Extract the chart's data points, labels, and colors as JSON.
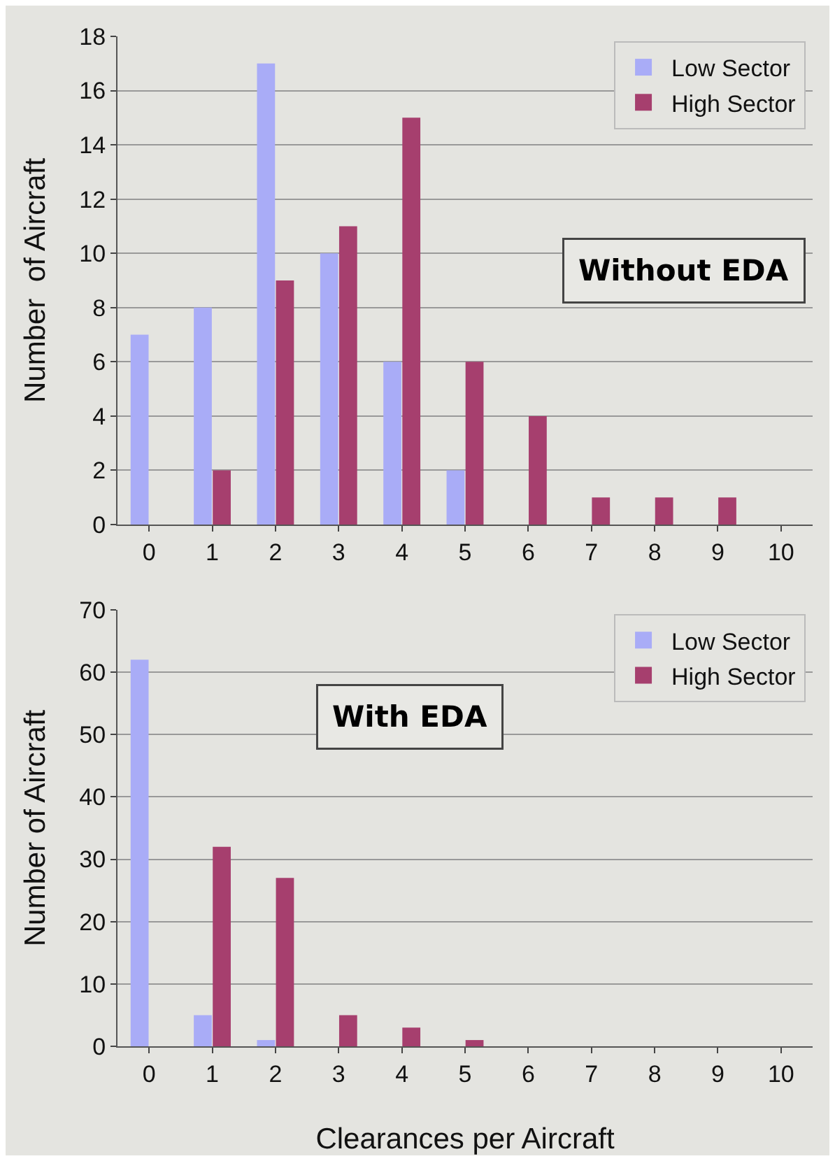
{
  "chart_data": [
    {
      "type": "bar",
      "ylabel": "Number  of Aircraft",
      "annotations": [
        "Without EDA"
      ],
      "categories": [
        "0",
        "1",
        "2",
        "3",
        "4",
        "5",
        "6",
        "7",
        "8",
        "9",
        "10"
      ],
      "series": [
        {
          "name": "Low Sector",
          "color": "#a9acf7",
          "values": [
            7,
            8,
            17,
            10,
            6,
            2,
            0,
            0,
            0,
            0,
            0
          ]
        },
        {
          "name": "High Sector",
          "color": "#a63f6e",
          "values": [
            0,
            2,
            9,
            11,
            15,
            6,
            4,
            1,
            1,
            1,
            0
          ]
        }
      ],
      "ylim": [
        0,
        18
      ],
      "yticks": [
        0,
        2,
        4,
        6,
        8,
        10,
        12,
        14,
        16,
        18
      ],
      "grid": "y",
      "legend": "top right"
    },
    {
      "type": "bar",
      "ylabel": "Number of Aircraft",
      "xlabel": "Clearances per Aircraft",
      "annotations": [
        "With EDA"
      ],
      "categories": [
        "0",
        "1",
        "2",
        "3",
        "4",
        "5",
        "6",
        "7",
        "8",
        "9",
        "10"
      ],
      "series": [
        {
          "name": "Low Sector",
          "color": "#a9acf7",
          "values": [
            62,
            5,
            1,
            0,
            0,
            0,
            0,
            0,
            0,
            0,
            0
          ]
        },
        {
          "name": "High Sector",
          "color": "#a63f6e",
          "values": [
            0,
            32,
            27,
            5,
            3,
            1,
            0,
            0,
            0,
            0,
            0
          ]
        }
      ],
      "ylim": [
        0,
        70
      ],
      "yticks": [
        0,
        10,
        20,
        30,
        40,
        50,
        60,
        70
      ],
      "grid": "y",
      "legend": "top right"
    }
  ]
}
